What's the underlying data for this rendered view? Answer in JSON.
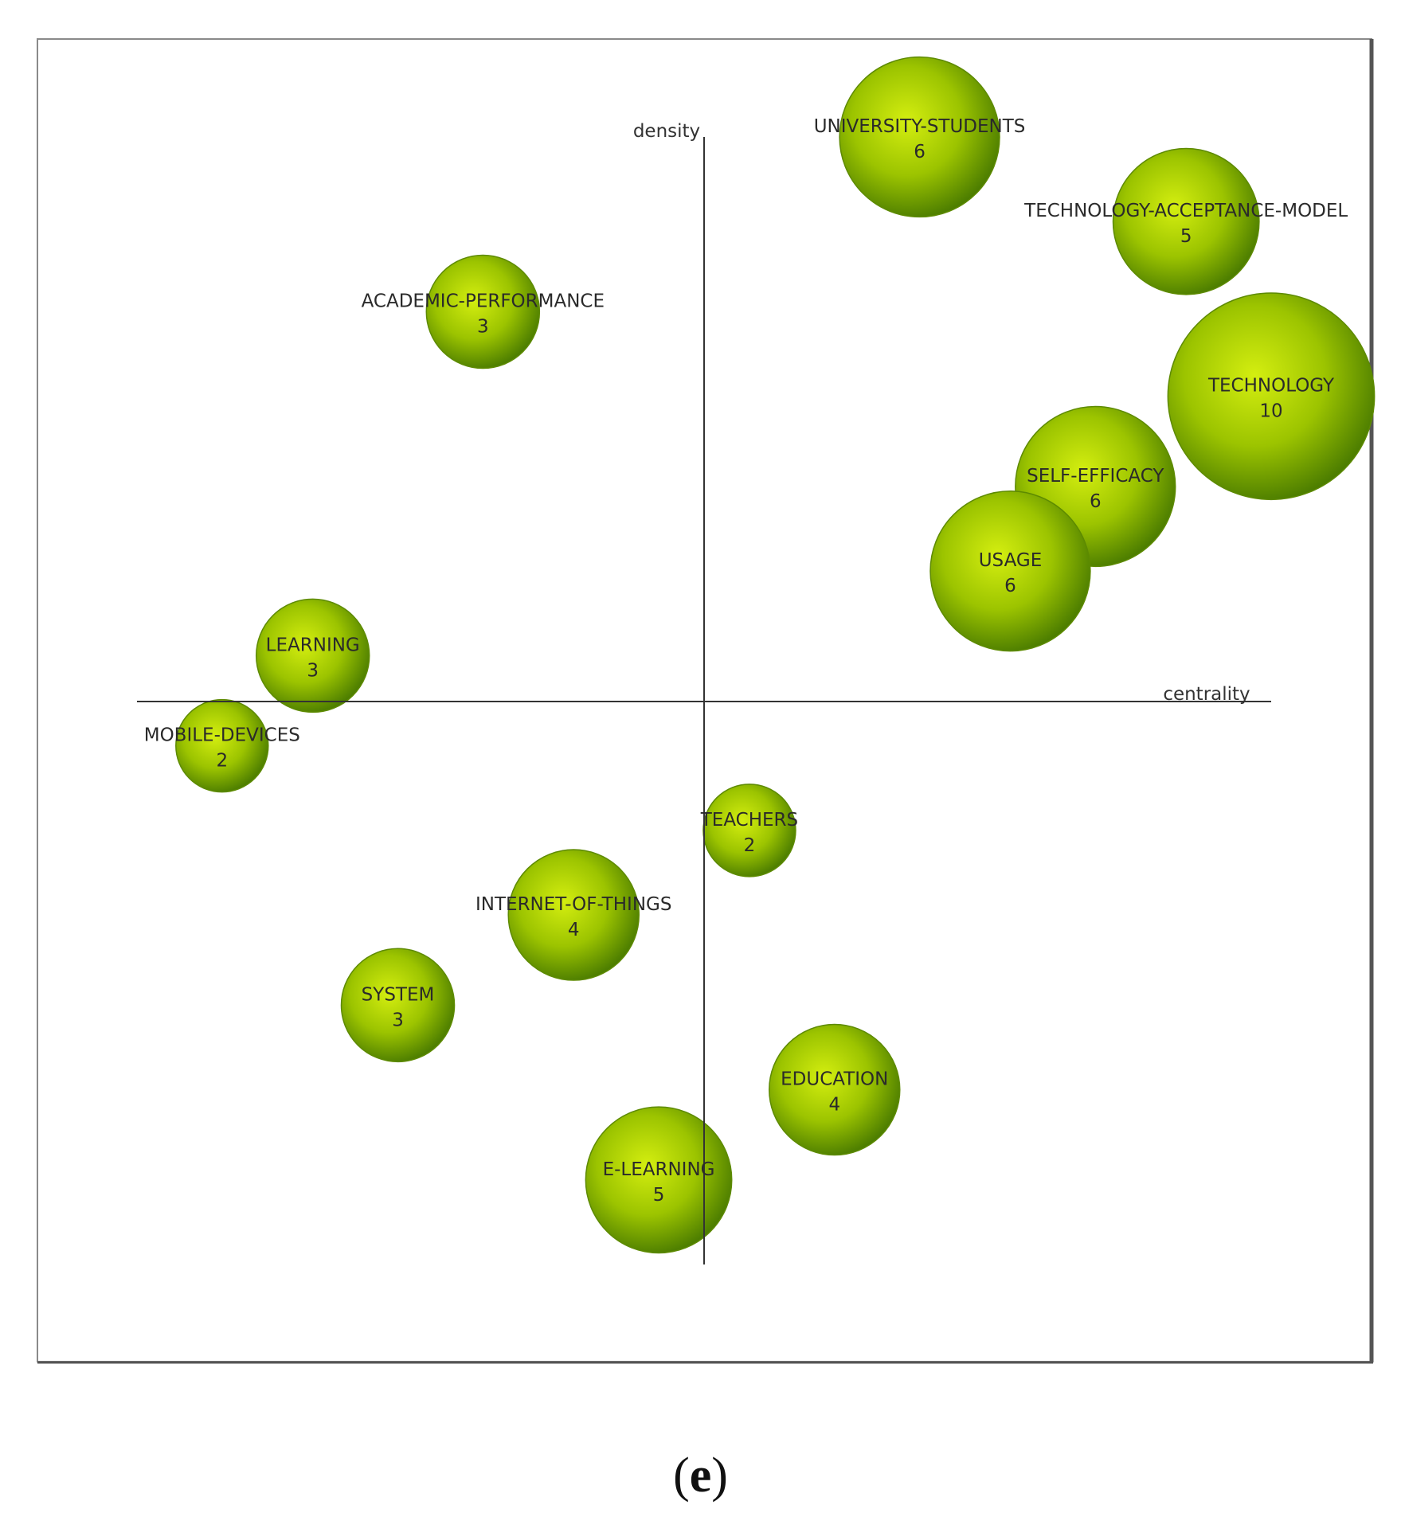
{
  "chart_data": {
    "type": "scatter",
    "title": "",
    "xlabel": "centrality",
    "ylabel": "density",
    "xlim": [
      -100,
      100
    ],
    "ylim": [
      -100,
      100
    ],
    "grid": false,
    "legend": "none",
    "series": [
      {
        "points": [
          {
            "label": "UNIVERSITY-STUDENTS",
            "value": "6",
            "x": 38,
            "y": 100
          },
          {
            "label": "TECHNOLOGY-ACCEPTANCE-MODEL",
            "value": "5",
            "x": 85,
            "y": 85
          },
          {
            "label": "ACADEMIC-PERFORMANCE",
            "value": "3",
            "x": -39,
            "y": 69
          },
          {
            "label": "TECHNOLOGY",
            "value": "10",
            "x": 100,
            "y": 54
          },
          {
            "label": "SELF-EFFICACY",
            "value": "6",
            "x": 69,
            "y": 38
          },
          {
            "label": "USAGE",
            "value": "6",
            "x": 54,
            "y": 23
          },
          {
            "label": "LEARNING",
            "value": "3",
            "x": -69,
            "y": 8
          },
          {
            "label": "MOBILE-DEVICES",
            "value": "2",
            "x": -85,
            "y": -8
          },
          {
            "label": "TEACHERS",
            "value": "2",
            "x": 8,
            "y": -23
          },
          {
            "label": "INTERNET-OF-THINGS",
            "value": "4",
            "x": -23,
            "y": -38
          },
          {
            "label": "SYSTEM",
            "value": "3",
            "x": -54,
            "y": -54
          },
          {
            "label": "EDUCATION",
            "value": "4",
            "x": 23,
            "y": -69
          },
          {
            "label": "E-LEARNING",
            "value": "5",
            "x": -8,
            "y": -85
          }
        ]
      }
    ],
    "colors": {
      "bubble_light": "#c8e60a",
      "bubble_mid": "#8fb800",
      "bubble_dark": "#4a7a00",
      "axis": "#333333",
      "frame": "#777777"
    }
  },
  "caption": {
    "open": "(",
    "letter": "e",
    "close": ")"
  }
}
